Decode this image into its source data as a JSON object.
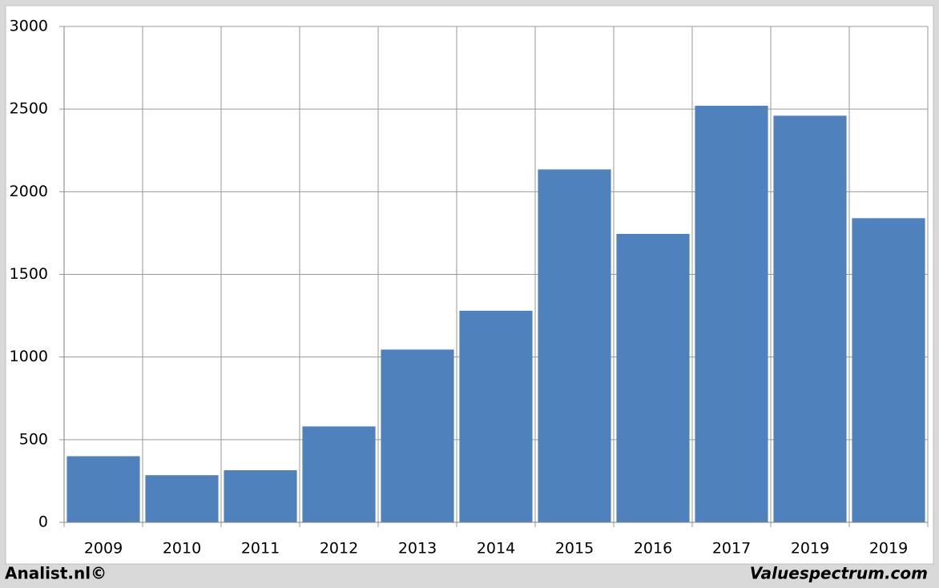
{
  "chart_data": {
    "type": "bar",
    "categories": [
      "2009",
      "2010",
      "2011",
      "2012",
      "2013",
      "2014",
      "2015",
      "2016",
      "2017",
      "2019",
      "2019"
    ],
    "values": [
      400,
      285,
      315,
      580,
      1045,
      1280,
      2135,
      1745,
      2520,
      2460,
      1840
    ],
    "color": "#4f81bd",
    "ylim": [
      0,
      3000
    ],
    "yticks": [
      0,
      500,
      1000,
      1500,
      2000,
      2500,
      3000
    ],
    "grid": true
  },
  "footer": {
    "left": "Analist.nl©",
    "right": "Valuespectrum.com"
  }
}
